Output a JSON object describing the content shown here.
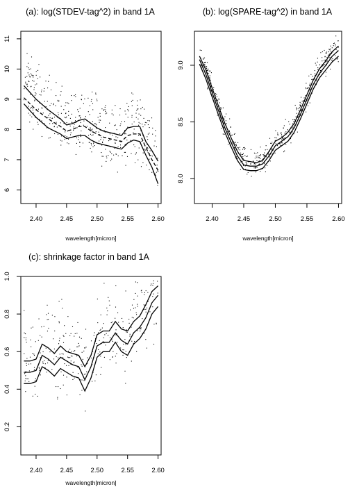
{
  "chart_data": [
    {
      "type": "scatter",
      "title": "(a): log(STDEV-tag^2) in band 1A",
      "xlabel": "wavelength[micron]",
      "ylabel": "",
      "xlim": [
        2.375,
        2.605
      ],
      "ylim": [
        5.55,
        11.25
      ],
      "xticks": [
        2.4,
        2.45,
        2.5,
        2.55,
        2.6
      ],
      "xtick_labels": [
        "2.40",
        "2.45",
        "2.50",
        "2.55",
        "2.60"
      ],
      "yticks": [
        6,
        7,
        8,
        9,
        10,
        11
      ],
      "ytick_labels": [
        "6",
        "7",
        "8",
        "9",
        "10",
        "11"
      ],
      "grid": false,
      "points": {
        "x_range": [
          2.38,
          2.6
        ],
        "n": 460,
        "seed": 11,
        "noise": [
          1.25,
          0.95,
          0.75
        ],
        "ratio": [
          0.25,
          0.62
        ],
        "clamp": [
          5.6,
          11.1
        ]
      },
      "series": [
        {
          "style": "dashed",
          "x": [
            2.38,
            2.4,
            2.42,
            2.44,
            2.45,
            2.46,
            2.47,
            2.48,
            2.49,
            2.5,
            2.51,
            2.52,
            2.53,
            2.54,
            2.55,
            2.56,
            2.57,
            2.58,
            2.59,
            2.6
          ],
          "y": [
            9.05,
            8.65,
            8.35,
            8.1,
            7.95,
            8.0,
            8.1,
            8.1,
            7.95,
            7.85,
            7.75,
            7.7,
            7.65,
            7.6,
            7.8,
            7.85,
            7.85,
            7.4,
            7.0,
            6.65
          ]
        },
        {
          "style": "solid",
          "x": [
            2.38,
            2.4,
            2.42,
            2.44,
            2.45,
            2.46,
            2.47,
            2.48,
            2.49,
            2.5,
            2.51,
            2.52,
            2.53,
            2.54,
            2.55,
            2.56,
            2.57,
            2.58,
            2.59,
            2.6
          ],
          "y": [
            9.45,
            9.0,
            8.65,
            8.35,
            8.15,
            8.2,
            8.3,
            8.35,
            8.2,
            8.05,
            7.95,
            7.9,
            7.85,
            7.8,
            8.05,
            8.1,
            8.1,
            7.6,
            7.3,
            6.95
          ]
        },
        {
          "style": "solid",
          "x": [
            2.38,
            2.4,
            2.42,
            2.44,
            2.45,
            2.46,
            2.47,
            2.48,
            2.49,
            2.5,
            2.51,
            2.52,
            2.53,
            2.54,
            2.55,
            2.56,
            2.57,
            2.58,
            2.59,
            2.6
          ],
          "y": [
            8.85,
            8.4,
            8.05,
            7.85,
            7.7,
            7.75,
            7.8,
            7.8,
            7.65,
            7.55,
            7.5,
            7.45,
            7.4,
            7.35,
            7.55,
            7.65,
            7.6,
            7.15,
            6.75,
            6.2
          ]
        }
      ]
    },
    {
      "type": "scatter",
      "title": "(b): log(SPARE-tag^2) in band 1A",
      "xlabel": "wavelength[micron]",
      "ylabel": "",
      "xlim": [
        2.372,
        2.605
      ],
      "ylim": [
        7.78,
        9.3
      ],
      "xticks": [
        2.4,
        2.45,
        2.5,
        2.55,
        2.6
      ],
      "xtick_labels": [
        "2.40",
        "2.45",
        "2.50",
        "2.55",
        "2.60"
      ],
      "yticks": [
        8.0,
        8.5,
        9.0
      ],
      "ytick_labels": [
        "8.0",
        "8.5",
        "9.0"
      ],
      "grid": false,
      "points": {
        "x_range": [
          2.38,
          2.6
        ],
        "n": 520,
        "seed": 23,
        "noise": [
          0.14,
          0.09,
          0.05
        ],
        "ratio": [
          0.33,
          0.6
        ],
        "clamp": [
          7.8,
          9.28
        ]
      },
      "series": [
        {
          "style": "solid",
          "x": [
            2.38,
            2.39,
            2.4,
            2.41,
            2.42,
            2.43,
            2.44,
            2.45,
            2.46,
            2.47,
            2.48,
            2.49,
            2.5,
            2.51,
            2.52,
            2.53,
            2.54,
            2.55,
            2.56,
            2.57,
            2.58,
            2.59,
            2.6
          ],
          "y": [
            9.05,
            8.92,
            8.76,
            8.6,
            8.45,
            8.32,
            8.2,
            8.12,
            8.11,
            8.11,
            8.13,
            8.2,
            8.29,
            8.33,
            8.37,
            8.45,
            8.57,
            8.7,
            8.83,
            8.93,
            9.0,
            9.08,
            9.13
          ]
        },
        {
          "style": "solid",
          "x": [
            2.38,
            2.39,
            2.4,
            2.41,
            2.42,
            2.43,
            2.44,
            2.45,
            2.46,
            2.47,
            2.48,
            2.49,
            2.5,
            2.51,
            2.52,
            2.53,
            2.54,
            2.55,
            2.56,
            2.57,
            2.58,
            2.59,
            2.6
          ],
          "y": [
            9.08,
            8.96,
            8.8,
            8.64,
            8.49,
            8.36,
            8.24,
            8.16,
            8.15,
            8.14,
            8.16,
            8.24,
            8.33,
            8.36,
            8.41,
            8.49,
            8.61,
            8.74,
            8.87,
            8.97,
            9.04,
            9.12,
            9.17
          ]
        },
        {
          "style": "solid",
          "x": [
            2.38,
            2.39,
            2.4,
            2.41,
            2.42,
            2.43,
            2.44,
            2.45,
            2.46,
            2.47,
            2.48,
            2.49,
            2.5,
            2.51,
            2.52,
            2.53,
            2.54,
            2.55,
            2.56,
            2.57,
            2.58,
            2.59,
            2.6
          ],
          "y": [
            9.01,
            8.88,
            8.72,
            8.56,
            8.41,
            8.28,
            8.16,
            8.08,
            8.07,
            8.07,
            8.09,
            8.16,
            8.25,
            8.29,
            8.33,
            8.41,
            8.53,
            8.66,
            8.79,
            8.89,
            8.96,
            9.03,
            9.08
          ]
        }
      ]
    },
    {
      "type": "scatter",
      "title": "(c): shrinkage factor in band 1A",
      "xlabel": "wavelength[micron]",
      "ylabel": "",
      "xlim": [
        2.375,
        2.605
      ],
      "ylim": [
        0.05,
        1.0
      ],
      "xticks": [
        2.4,
        2.45,
        2.5,
        2.55,
        2.6
      ],
      "xtick_labels": [
        "2.40",
        "2.45",
        "2.50",
        "2.55",
        "2.60"
      ],
      "yticks": [
        0.2,
        0.4,
        0.6,
        0.8,
        1.0
      ],
      "ytick_labels": [
        "0.2",
        "0.4",
        "0.6",
        "0.8",
        "1.0"
      ],
      "grid": false,
      "points": {
        "x_range": [
          2.38,
          2.6
        ],
        "n": 340,
        "seed": 47,
        "noise": [
          0.3,
          0.2,
          0.12
        ],
        "ratio": [
          0.2,
          0.55
        ],
        "clamp": [
          0.06,
          0.98
        ]
      },
      "series": [
        {
          "style": "solid",
          "x": [
            2.38,
            2.39,
            2.4,
            2.41,
            2.42,
            2.43,
            2.44,
            2.45,
            2.46,
            2.47,
            2.48,
            2.49,
            2.5,
            2.51,
            2.52,
            2.53,
            2.54,
            2.55,
            2.56,
            2.57,
            2.58,
            2.59,
            2.6
          ],
          "y": [
            0.49,
            0.49,
            0.5,
            0.58,
            0.56,
            0.53,
            0.57,
            0.55,
            0.53,
            0.52,
            0.45,
            0.52,
            0.63,
            0.65,
            0.65,
            0.7,
            0.66,
            0.64,
            0.7,
            0.73,
            0.78,
            0.86,
            0.9
          ]
        },
        {
          "style": "solid",
          "x": [
            2.38,
            2.39,
            2.4,
            2.41,
            2.42,
            2.43,
            2.44,
            2.45,
            2.46,
            2.47,
            2.48,
            2.49,
            2.5,
            2.51,
            2.52,
            2.53,
            2.54,
            2.55,
            2.56,
            2.57,
            2.58,
            2.59,
            2.6
          ],
          "y": [
            0.55,
            0.55,
            0.56,
            0.64,
            0.62,
            0.59,
            0.63,
            0.6,
            0.59,
            0.58,
            0.52,
            0.58,
            0.69,
            0.71,
            0.71,
            0.76,
            0.72,
            0.71,
            0.76,
            0.79,
            0.85,
            0.92,
            0.95
          ]
        },
        {
          "style": "solid",
          "x": [
            2.38,
            2.39,
            2.4,
            2.41,
            2.42,
            2.43,
            2.44,
            2.45,
            2.46,
            2.47,
            2.48,
            2.49,
            2.5,
            2.51,
            2.52,
            2.53,
            2.54,
            2.55,
            2.56,
            2.57,
            2.58,
            2.59,
            2.6
          ],
          "y": [
            0.43,
            0.43,
            0.44,
            0.52,
            0.5,
            0.47,
            0.51,
            0.49,
            0.47,
            0.46,
            0.39,
            0.46,
            0.57,
            0.6,
            0.6,
            0.65,
            0.6,
            0.58,
            0.64,
            0.67,
            0.72,
            0.8,
            0.84
          ]
        }
      ]
    }
  ]
}
